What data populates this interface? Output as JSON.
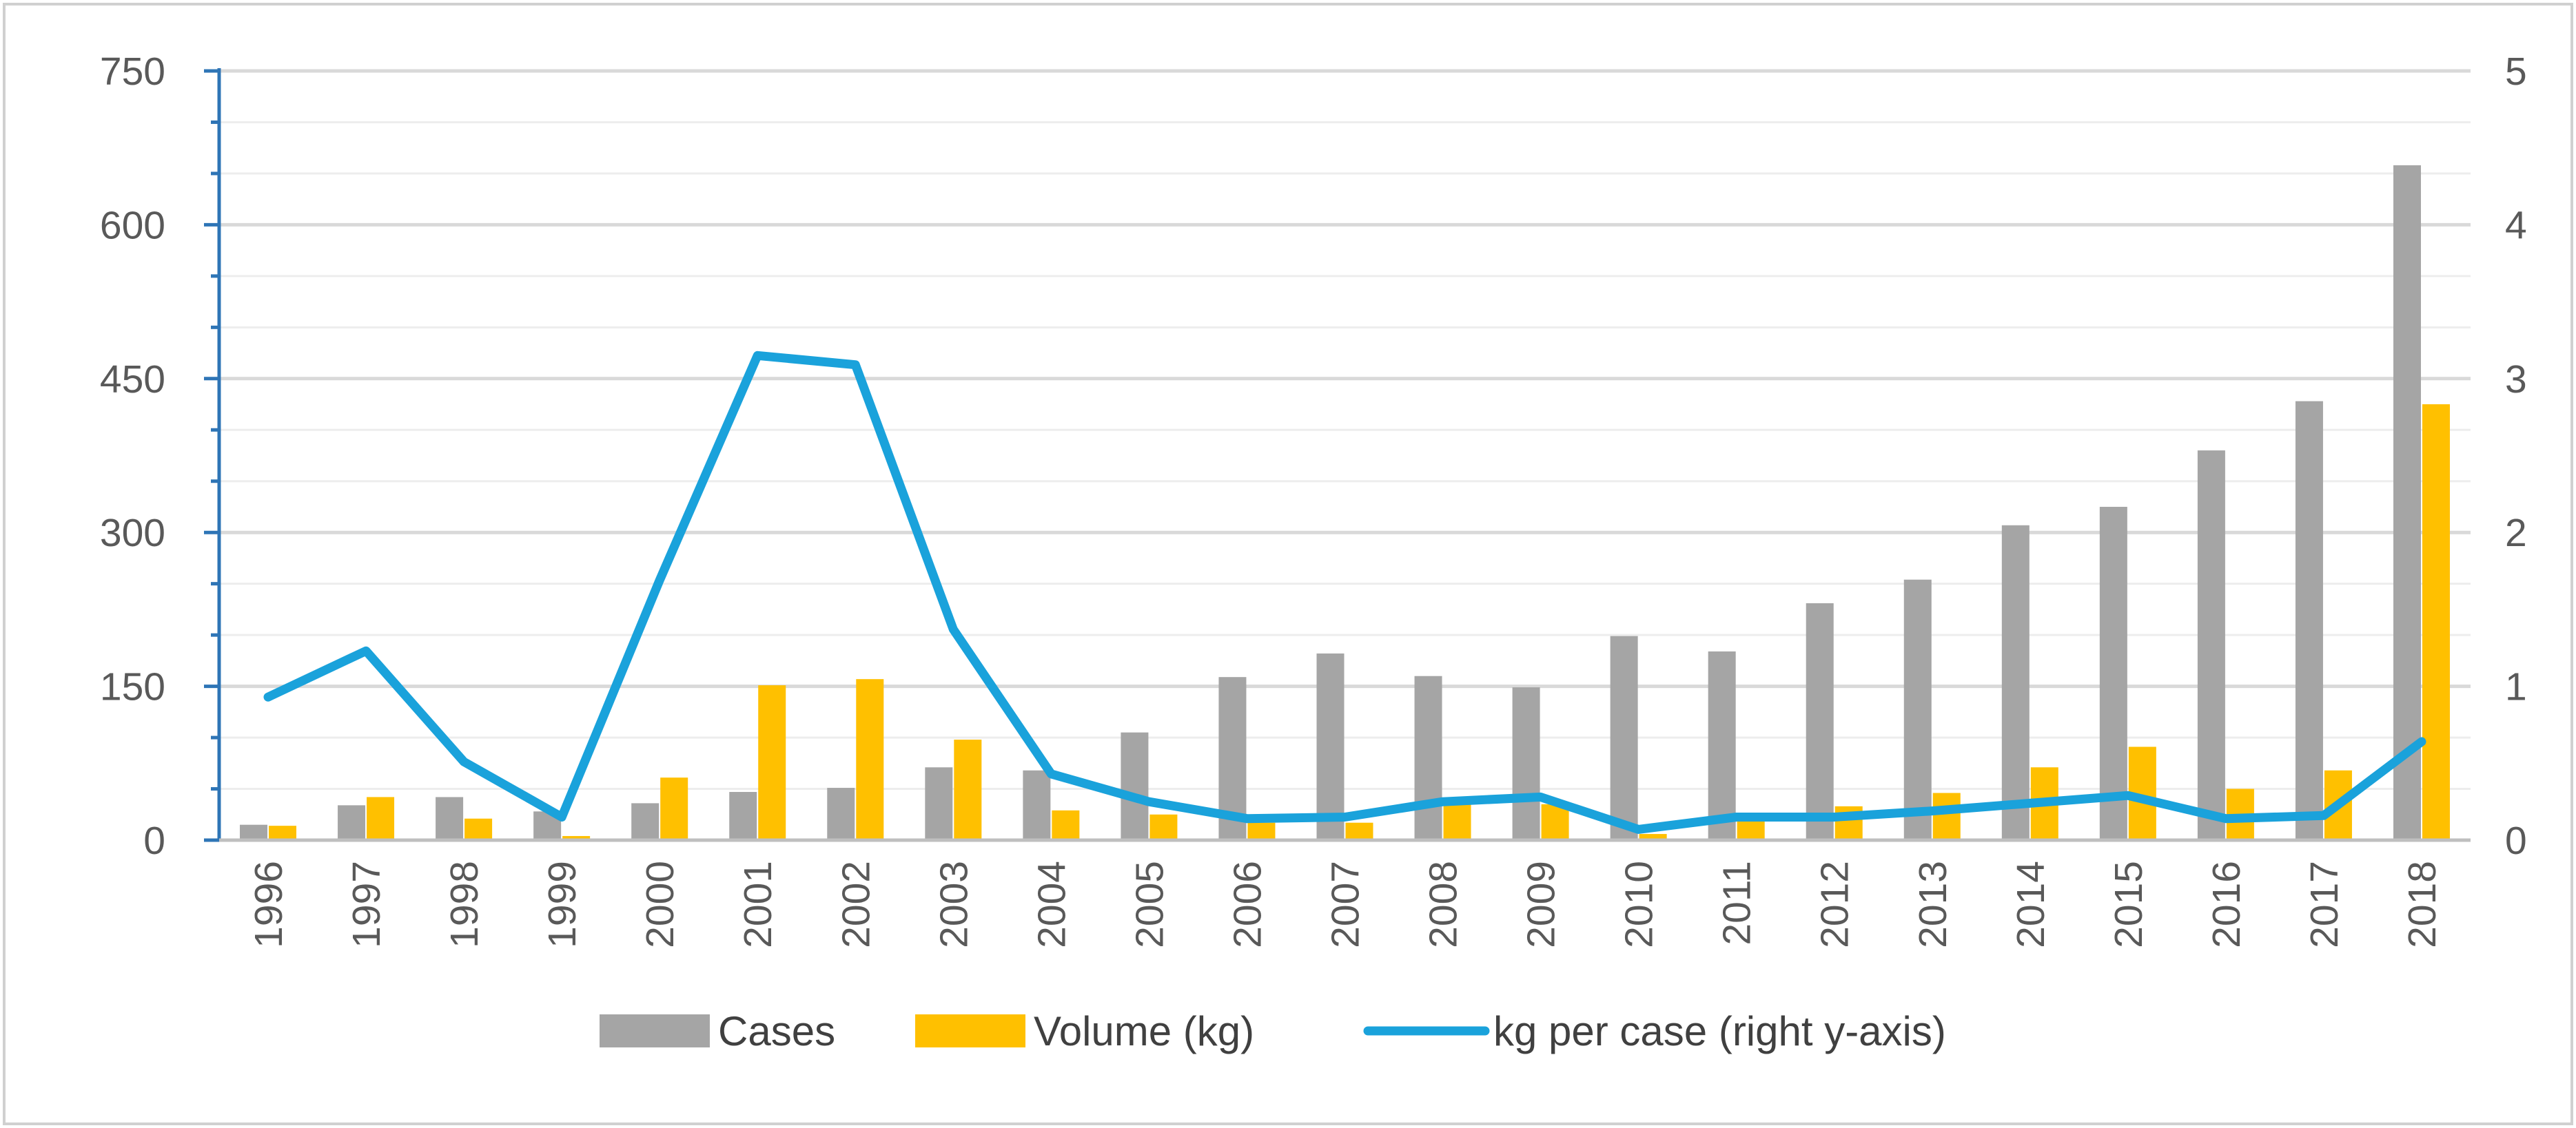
{
  "chart_data": {
    "type": "bar",
    "title": "",
    "xlabel": "",
    "ylabel": "",
    "y2label": "",
    "categories": [
      "1996",
      "1997",
      "1998",
      "1999",
      "2000",
      "2001",
      "2002",
      "2003",
      "2004",
      "2005",
      "2006",
      "2007",
      "2008",
      "2009",
      "2010",
      "2011",
      "2012",
      "2013",
      "2014",
      "2015",
      "2016",
      "2017",
      "2018"
    ],
    "series": [
      {
        "name": "Cases",
        "type": "bar",
        "axis": "left",
        "color": "#A5A5A5",
        "values": [
          15,
          34,
          42,
          28,
          36,
          47,
          51,
          71,
          68,
          105,
          159,
          182,
          160,
          149,
          199,
          184,
          231,
          254,
          307,
          325,
          380,
          428,
          658
        ]
      },
      {
        "name": "Volume (kg)",
        "type": "bar",
        "axis": "left",
        "color": "#FFC000",
        "values": [
          14,
          42,
          21,
          4,
          61,
          151,
          157,
          98,
          29,
          25,
          17,
          17,
          35,
          35,
          6,
          20,
          33,
          46,
          71,
          91,
          50,
          68,
          425
        ]
      },
      {
        "name": "kg per case (right y-axis)",
        "type": "line",
        "axis": "right",
        "color": "#1AA2DB",
        "values": [
          0.93,
          1.23,
          0.51,
          0.15,
          1.69,
          3.15,
          3.09,
          1.37,
          0.43,
          0.25,
          0.14,
          0.15,
          0.25,
          0.28,
          0.07,
          0.15,
          0.15,
          0.19,
          0.24,
          0.29,
          0.14,
          0.16,
          0.64
        ]
      }
    ],
    "ylim": [
      0,
      750
    ],
    "yticks": [
      "0",
      "150",
      "300",
      "450",
      "600",
      "750"
    ],
    "y2lim": [
      0,
      5
    ],
    "y2ticks": [
      "0",
      "1",
      "2",
      "3",
      "4",
      "5"
    ],
    "grid": true,
    "legend": "bottom-center"
  }
}
